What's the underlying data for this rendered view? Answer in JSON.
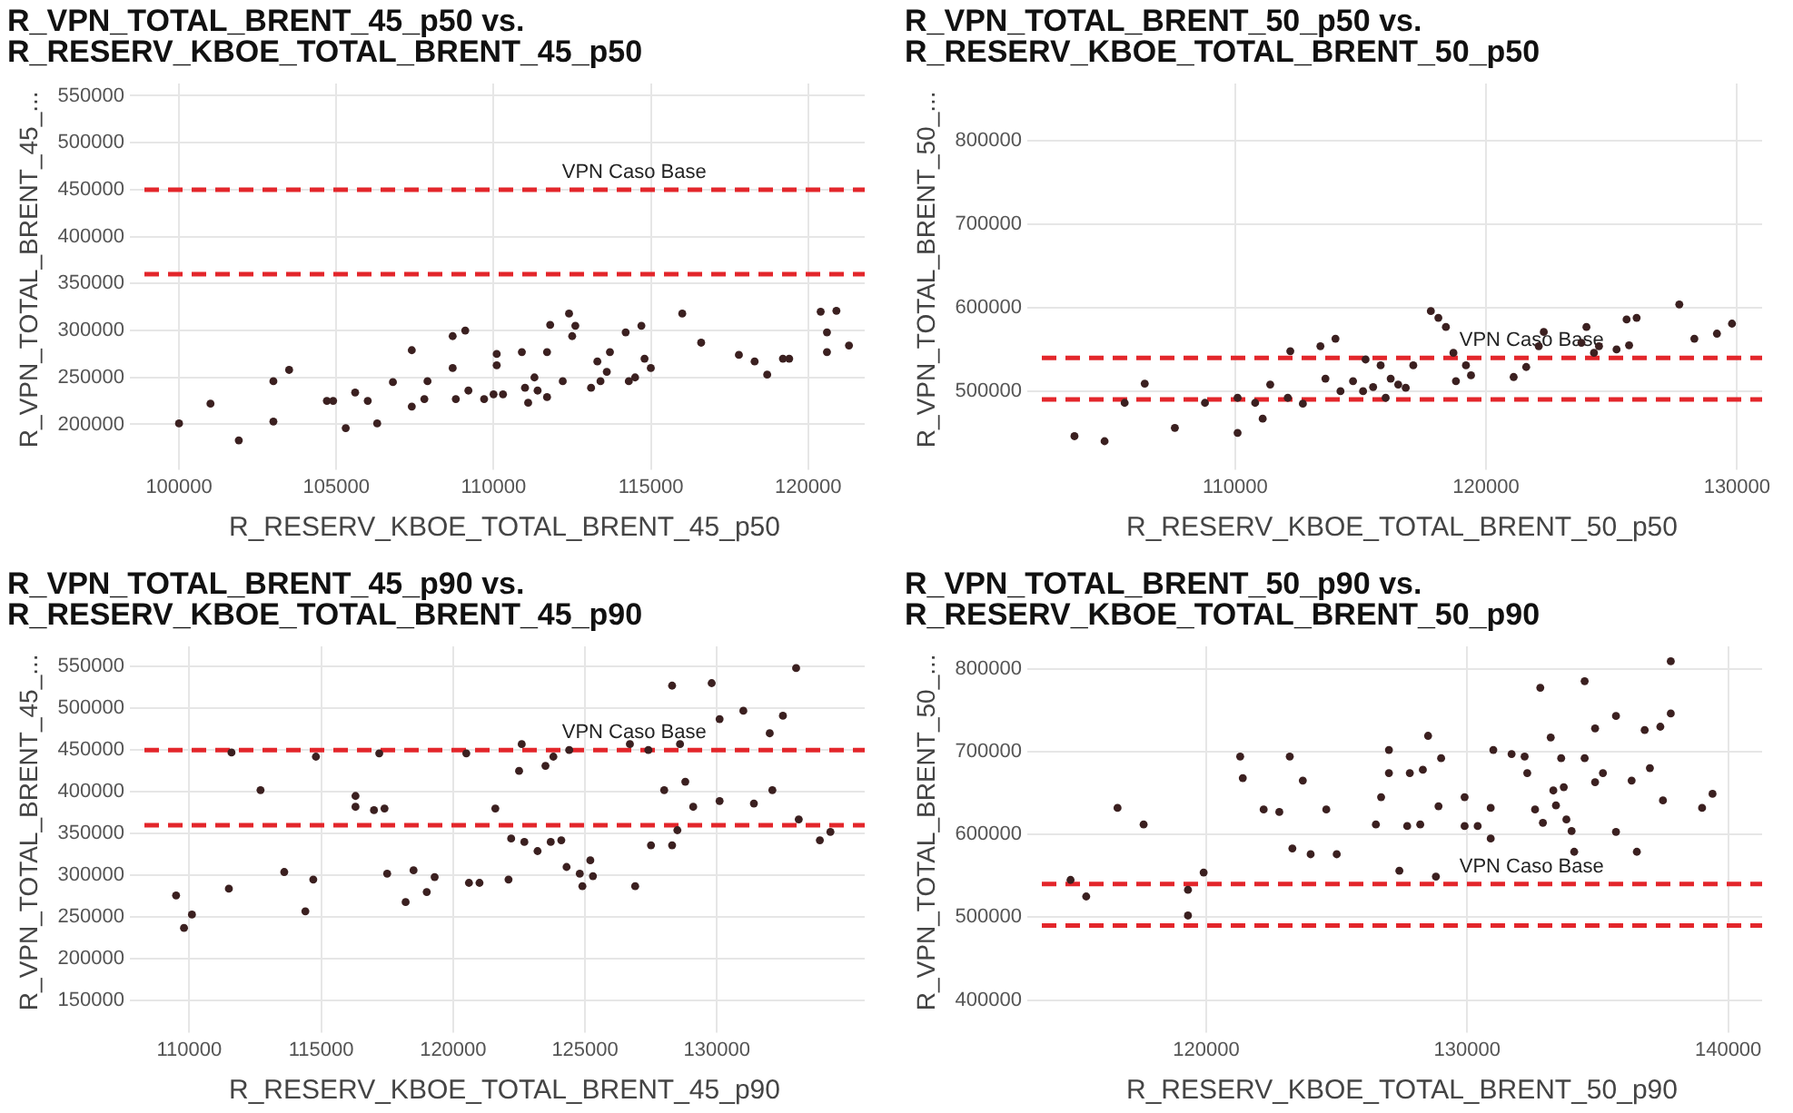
{
  "chart_data": [
    {
      "type": "scatter",
      "title": "R_VPN_TOTAL_BRENT_45_p50 vs.\nR_RESERV_KBOE_TOTAL_BRENT_45_p50",
      "xlabel": "R_RESERV_KBOE_TOTAL_BRENT_45_p50",
      "ylabel": "R_VPN_TOTAL_BRENT_45_...",
      "grid": true,
      "legend": false,
      "marker": "circle",
      "xlim": [
        98900,
        121800
      ],
      "xticks": [
        100000,
        105000,
        110000,
        115000,
        120000
      ],
      "ylim": [
        167000,
        563000
      ],
      "yticks": [
        200000,
        250000,
        300000,
        350000,
        400000,
        450000,
        500000,
        550000
      ],
      "ref_lines": [
        {
          "axis": "y",
          "value": 450000,
          "label": "VPN Caso Base",
          "color": "#e3262b",
          "line_style": "dashed"
        },
        {
          "axis": "y",
          "value": 360000,
          "label": null,
          "color": "#e3262b",
          "line_style": "dashed"
        }
      ],
      "series": [
        {
          "color": "#3b2020",
          "x": [
            100000,
            101000,
            101900,
            103000,
            103000,
            103500,
            104700,
            104900,
            105300,
            105600,
            106000,
            106300,
            106800,
            107400,
            107400,
            107800,
            107900,
            108700,
            109100,
            108700,
            108800,
            109200,
            109700,
            110000,
            110100,
            110100,
            110300,
            110900,
            111000,
            111100,
            111300,
            111400,
            111700,
            111700,
            111800,
            112200,
            112400,
            112500,
            112600,
            113100,
            113300,
            113400,
            113600,
            113700,
            114200,
            114300,
            114500,
            114700,
            114800,
            115000,
            116000,
            116600,
            117800,
            118300,
            118700,
            119200,
            119400,
            120400,
            120600,
            120900,
            120600,
            121300
          ],
          "values": [
            201000,
            222000,
            183000,
            246000,
            203000,
            258000,
            225000,
            225000,
            196000,
            234000,
            225000,
            201000,
            245000,
            279000,
            219000,
            227000,
            246000,
            294000,
            300000,
            260000,
            227000,
            236000,
            227000,
            232000,
            275000,
            263000,
            232000,
            277000,
            239000,
            223000,
            250000,
            236000,
            229000,
            277000,
            306000,
            246000,
            318000,
            294000,
            305000,
            239000,
            267000,
            246000,
            256000,
            277000,
            298000,
            246000,
            250000,
            305000,
            270000,
            260000,
            318000,
            287000,
            274000,
            267000,
            253000,
            270000,
            270000,
            320000,
            298000,
            321000,
            277000,
            284000
          ]
        }
      ]
    },
    {
      "type": "scatter",
      "title": "R_VPN_TOTAL_BRENT_50_p50 vs.\nR_RESERV_KBOE_TOTAL_BRENT_50_p50",
      "xlabel": "R_RESERV_KBOE_TOTAL_BRENT_50_p50",
      "ylabel": "R_VPN_TOTAL_BRENT_50_...",
      "grid": true,
      "legend": false,
      "marker": "circle",
      "xlim": [
        102300,
        131000
      ],
      "xticks": [
        110000,
        120000,
        130000
      ],
      "ylim": [
        423000,
        869000
      ],
      "yticks": [
        500000,
        600000,
        700000,
        800000
      ],
      "ref_lines": [
        {
          "axis": "y",
          "value": 540000,
          "label": "VPN Caso Base",
          "color": "#e3262b",
          "line_style": "dashed"
        },
        {
          "axis": "y",
          "value": 490000,
          "label": null,
          "color": "#e3262b",
          "line_style": "dashed"
        }
      ],
      "series": [
        {
          "color": "#3b2020",
          "x": [
            103600,
            104800,
            105600,
            106400,
            107600,
            108800,
            110100,
            110100,
            110800,
            111100,
            111400,
            112100,
            112200,
            112700,
            113400,
            113600,
            114000,
            114200,
            114700,
            115100,
            115200,
            115500,
            115800,
            116000,
            116200,
            116500,
            116800,
            117100,
            117800,
            118100,
            118400,
            118700,
            118800,
            119200,
            119400,
            121100,
            121600,
            122100,
            122300,
            123800,
            124000,
            124300,
            124500,
            125200,
            125600,
            126000,
            125700,
            127700,
            128300,
            129200,
            129800
          ],
          "values": [
            446000,
            440000,
            486000,
            509000,
            456000,
            486000,
            450000,
            492000,
            486000,
            467000,
            508000,
            492000,
            548000,
            485000,
            554000,
            515000,
            563000,
            500000,
            512000,
            500000,
            538000,
            505000,
            531000,
            492000,
            515000,
            508000,
            504000,
            531000,
            596000,
            588000,
            577000,
            546000,
            512000,
            531000,
            519000,
            517000,
            529000,
            554000,
            571000,
            558000,
            577000,
            546000,
            554000,
            550000,
            586000,
            588000,
            555000,
            604000,
            563000,
            569000,
            581000
          ]
        }
      ]
    },
    {
      "type": "scatter",
      "title": "R_VPN_TOTAL_BRENT_45_p90 vs.\nR_RESERV_KBOE_TOTAL_BRENT_45_p90",
      "xlabel": "R_RESERV_KBOE_TOTAL_BRENT_45_p90",
      "ylabel": "R_VPN_TOTAL_BRENT_45_...",
      "grid": true,
      "legend": false,
      "marker": "circle",
      "xlim": [
        108300,
        135600
      ],
      "xticks": [
        110000,
        115000,
        120000,
        125000,
        130000
      ],
      "ylim": [
        129000,
        574000
      ],
      "yticks": [
        150000,
        200000,
        250000,
        300000,
        350000,
        400000,
        450000,
        500000,
        550000
      ],
      "ref_lines": [
        {
          "axis": "y",
          "value": 450000,
          "label": "VPN Caso Base",
          "color": "#e3262b",
          "line_style": "dashed"
        },
        {
          "axis": "y",
          "value": 360000,
          "label": null,
          "color": "#e3262b",
          "line_style": "dashed"
        }
      ],
      "series": [
        {
          "color": "#3b2020",
          "x": [
            109500,
            109800,
            110100,
            111500,
            111600,
            112700,
            113600,
            114400,
            114700,
            114800,
            116300,
            116300,
            117000,
            117400,
            117200,
            117500,
            118200,
            118500,
            119000,
            119300,
            120500,
            120600,
            121000,
            121600,
            122200,
            122100,
            122500,
            122600,
            122700,
            123200,
            123500,
            123700,
            123800,
            124100,
            124300,
            124400,
            124800,
            124900,
            125200,
            125300,
            126900,
            126700,
            127400,
            127500,
            128300,
            128000,
            128300,
            128500,
            128600,
            128800,
            129100,
            129800,
            130100,
            130100,
            131000,
            131400,
            132000,
            132100,
            132500,
            133000,
            133100,
            133900,
            134300
          ],
          "values": [
            276000,
            237000,
            253000,
            284000,
            447000,
            402000,
            304000,
            257000,
            295000,
            442000,
            395000,
            382000,
            378000,
            380000,
            446000,
            302000,
            268000,
            306000,
            280000,
            298000,
            446000,
            291000,
            291000,
            380000,
            344000,
            295000,
            425000,
            457000,
            340000,
            329000,
            431000,
            340000,
            442000,
            342000,
            310000,
            450000,
            302000,
            287000,
            318000,
            299000,
            287000,
            457000,
            450000,
            336000,
            336000,
            402000,
            527000,
            354000,
            457000,
            412000,
            382000,
            530000,
            487000,
            389000,
            497000,
            386000,
            470000,
            402000,
            491000,
            548000,
            367000,
            342000,
            352000
          ]
        }
      ]
    },
    {
      "type": "scatter",
      "title": "R_VPN_TOTAL_BRENT_50_p90 vs.\nR_RESERV_KBOE_TOTAL_BRENT_50_p90",
      "xlabel": "R_RESERV_KBOE_TOTAL_BRENT_50_p90",
      "ylabel": "R_VPN_TOTAL_BRENT_50_...",
      "grid": true,
      "legend": false,
      "marker": "circle",
      "xlim": [
        113700,
        141300
      ],
      "xticks": [
        120000,
        130000,
        140000
      ],
      "ylim": [
        378000,
        827000
      ],
      "yticks": [
        400000,
        500000,
        600000,
        700000,
        800000
      ],
      "ref_lines": [
        {
          "axis": "y",
          "value": 540000,
          "label": "VPN Caso Base",
          "color": "#e3262b",
          "line_style": "dashed"
        },
        {
          "axis": "y",
          "value": 490000,
          "label": null,
          "color": "#e3262b",
          "line_style": "dashed"
        }
      ],
      "series": [
        {
          "color": "#3b2020",
          "x": [
            114800,
            115400,
            116600,
            117600,
            119300,
            119300,
            119900,
            121300,
            121400,
            122200,
            122800,
            123200,
            123300,
            123700,
            124000,
            124600,
            125000,
            126500,
            126700,
            127000,
            127000,
            127400,
            127700,
            127800,
            128200,
            128300,
            128500,
            128800,
            128900,
            129000,
            129900,
            129900,
            130400,
            130900,
            131000,
            130900,
            131700,
            132200,
            132300,
            132600,
            132800,
            132900,
            133200,
            133300,
            133400,
            133600,
            133700,
            133800,
            134000,
            134100,
            134500,
            134500,
            134900,
            134900,
            135200,
            135700,
            135700,
            136500,
            136300,
            136800,
            137000,
            137400,
            137500,
            137800,
            137800,
            139000,
            139400
          ],
          "values": [
            545000,
            525000,
            632000,
            612000,
            533000,
            502000,
            554000,
            694000,
            668000,
            630000,
            627000,
            694000,
            583000,
            665000,
            576000,
            630000,
            576000,
            612000,
            645000,
            674000,
            702000,
            556000,
            610000,
            674000,
            612000,
            678000,
            719000,
            549000,
            634000,
            692000,
            645000,
            610000,
            610000,
            632000,
            702000,
            595000,
            697000,
            694000,
            674000,
            630000,
            777000,
            614000,
            717000,
            653000,
            635000,
            692000,
            657000,
            618000,
            604000,
            579000,
            785000,
            692000,
            728000,
            663000,
            674000,
            603000,
            743000,
            579000,
            665000,
            726000,
            680000,
            730000,
            641000,
            809000,
            746000,
            632000,
            649000
          ]
        }
      ]
    }
  ]
}
